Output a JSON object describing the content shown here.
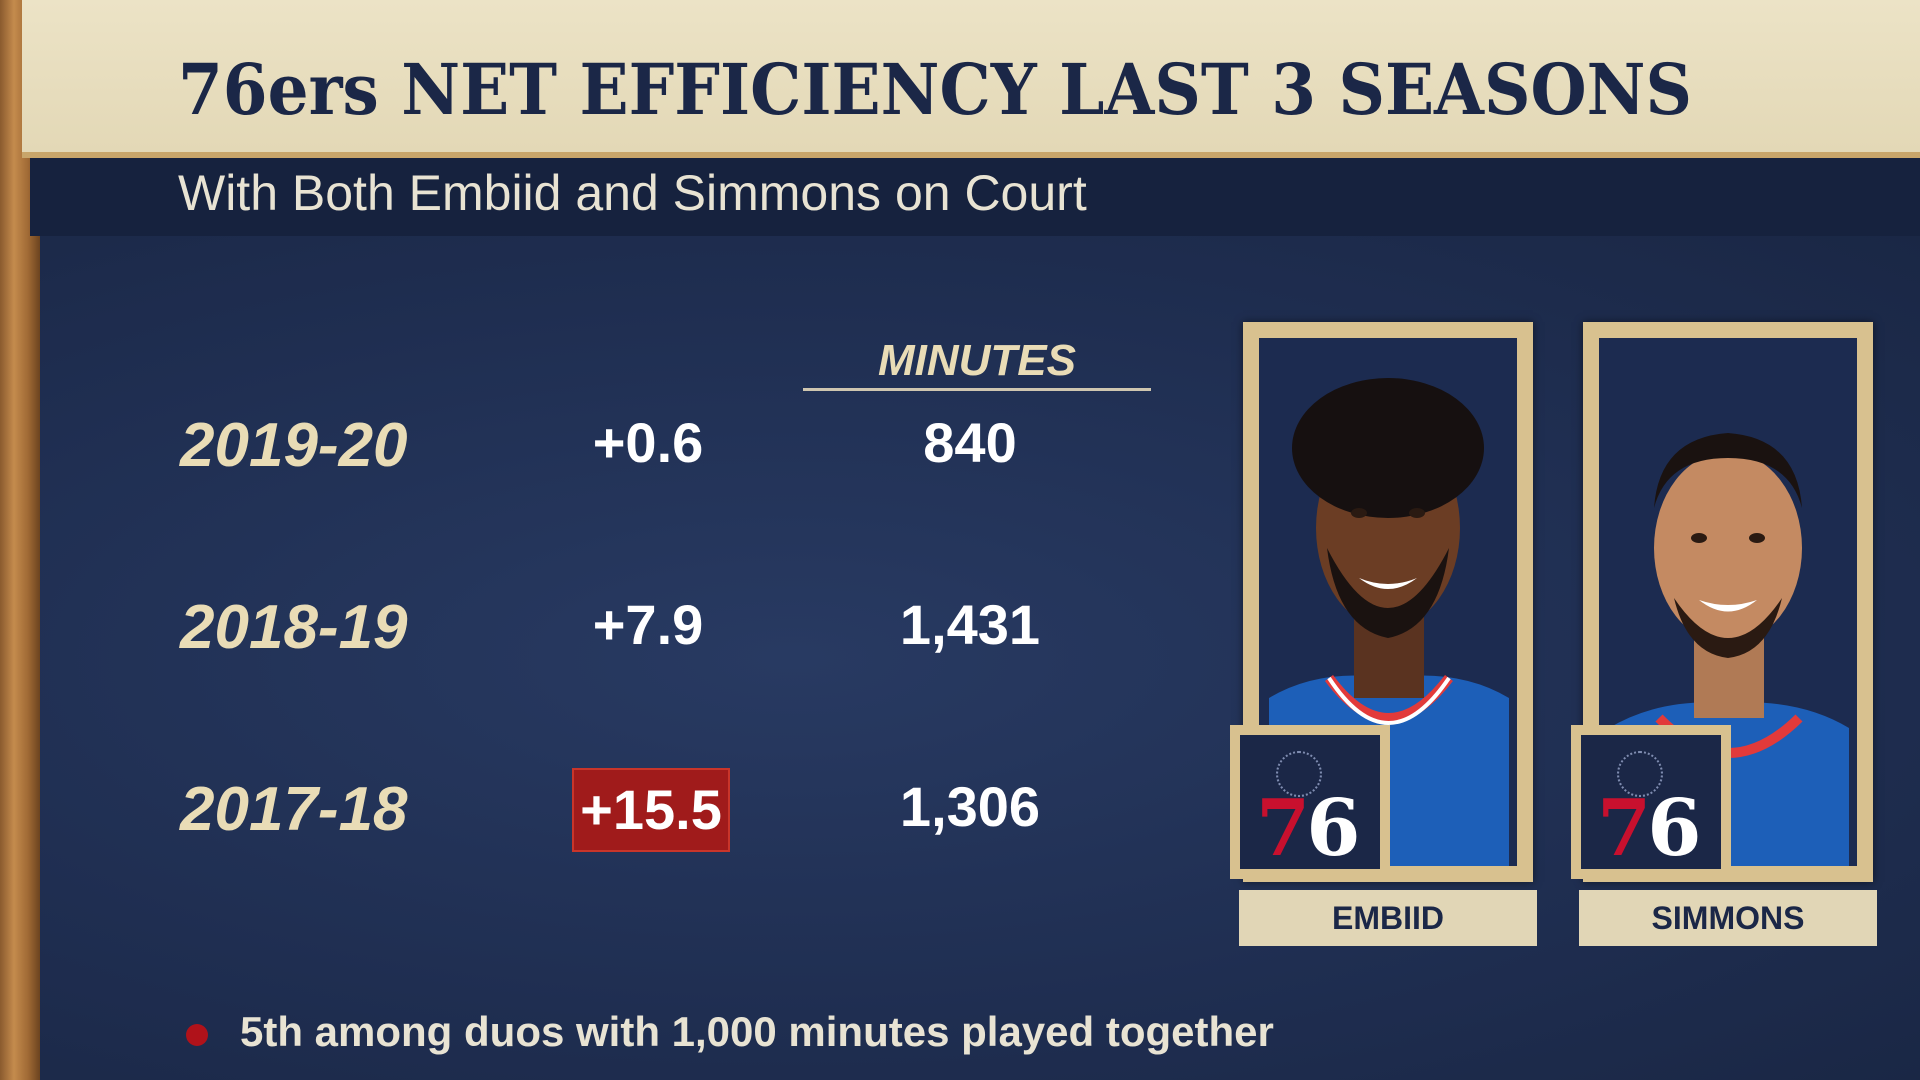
{
  "title": "76ers NET EFFICIENCY LAST 3 SEASONS",
  "subtitle": "With Both Embiid and Simmons on Court",
  "table": {
    "minutes_header": "MINUTES",
    "rows": [
      {
        "season": "2019-20",
        "net": "+0.6",
        "minutes": "840",
        "highlight": false
      },
      {
        "season": "2018-19",
        "net": "+7.9",
        "minutes": "1,431",
        "highlight": false
      },
      {
        "season": "2017-18",
        "net": "+15.5",
        "minutes": "1,306",
        "highlight": true
      }
    ]
  },
  "players": [
    {
      "name": "EMBIID",
      "logo": "76"
    },
    {
      "name": "SIMMONS",
      "logo": "76"
    }
  ],
  "footnote": "5th among duos with 1,000 minutes played together",
  "colors": {
    "header_bg": "#e3d8b6",
    "panel_bg": "#1f2e51",
    "highlight": "#a01b1b",
    "gold_text": "#e9dcb6",
    "accent_red": "#c8102e"
  }
}
